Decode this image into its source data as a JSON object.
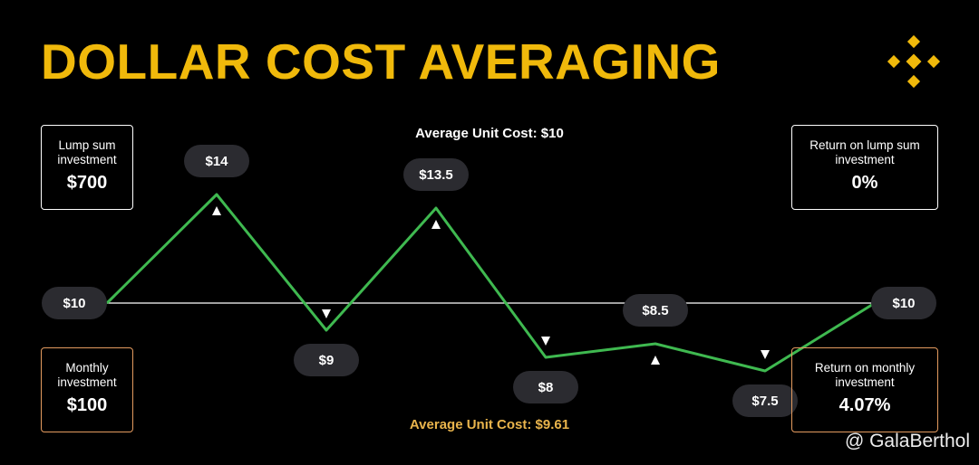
{
  "chart_data": {
    "type": "line",
    "title": "DOLLAR COST AVERAGING",
    "values": [
      10,
      14,
      9,
      13.5,
      8,
      8.5,
      7.5,
      10
    ],
    "value_labels": [
      "$10",
      "$14",
      "$9",
      "$13.5",
      "$8",
      "$8.5",
      "$7.5",
      "$10"
    ],
    "color": "#3fb950"
  },
  "lump_sum": {
    "label": "Lump sum investment",
    "amount": "$700",
    "average": "Average Unit Cost: $10",
    "return_label": "Return on lump sum investment",
    "return": "0%"
  },
  "monthly": {
    "label": "Monthly investment",
    "amount": "$100",
    "average": "Average Unit Cost: $9.61",
    "return_label": "Return on monthly investment",
    "return": "4.07%"
  },
  "watermark": "@ GalaBerthol"
}
